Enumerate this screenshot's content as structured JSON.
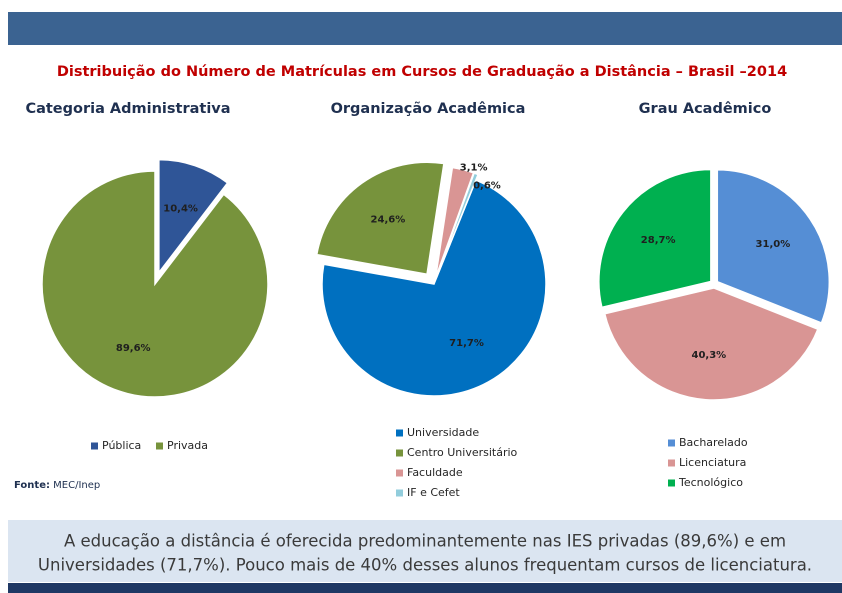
{
  "title": "Distribuição do Número de Matrículas em Cursos de Graduação a Distância – Brasil –2014",
  "source_label": "Fonte:",
  "source": "MEC/Inep",
  "caption": [
    "A educação a distância é oferecida predominantemente  nas IES privadas (89,6%) e em",
    "Universidades (71,7%). Pouco mais de 40% desses alunos frequentam cursos de licenciatura."
  ],
  "chart_data": [
    {
      "type": "pie",
      "title": "Categoria Administrativa",
      "categories": [
        "Pública",
        "Privada"
      ],
      "values": [
        10.4,
        89.6
      ],
      "value_labels": [
        "10,4%",
        "89,6%"
      ],
      "colors": [
        "#2f5597",
        "#77933c"
      ]
    },
    {
      "type": "pie",
      "title": "Organização Acadêmica",
      "categories": [
        "Universidade",
        "Centro Universitário",
        "Faculdade",
        "IF e Cefet"
      ],
      "values": [
        71.7,
        24.6,
        3.1,
        0.6
      ],
      "value_labels": [
        "71,7%",
        "24,6%",
        "3,1%",
        "0,6%"
      ],
      "colors": [
        "#0070c0",
        "#77933c",
        "#d99594",
        "#92cddc"
      ]
    },
    {
      "type": "pie",
      "title": "Grau Acadêmico",
      "categories": [
        "Bacharelado",
        "Licenciatura",
        "Tecnológico"
      ],
      "values": [
        31.0,
        40.3,
        28.7
      ],
      "value_labels": [
        "31,0%",
        "40,3%",
        "28,7%"
      ],
      "colors": [
        "#558ed5",
        "#d99594",
        "#00b050"
      ]
    }
  ]
}
